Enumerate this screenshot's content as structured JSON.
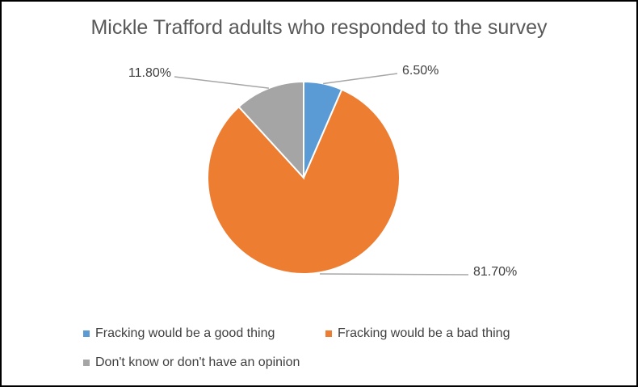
{
  "chart_data": {
    "type": "pie",
    "title": "Mickle Trafford adults who responded to the survey",
    "slices": [
      {
        "name": "Fracking would be a good thing",
        "value": 6.5,
        "label": "6.50%",
        "color": "#5B9BD5"
      },
      {
        "name": "Fracking would be a bad thing",
        "value": 81.7,
        "label": "81.70%",
        "color": "#ED7D31"
      },
      {
        "name": "Don't know or don't have an opinion",
        "value": 11.8,
        "label": "11.80%",
        "color": "#A5A5A5"
      }
    ],
    "legend_position": "bottom",
    "start_angle": "12 o'clock, clockwise"
  }
}
